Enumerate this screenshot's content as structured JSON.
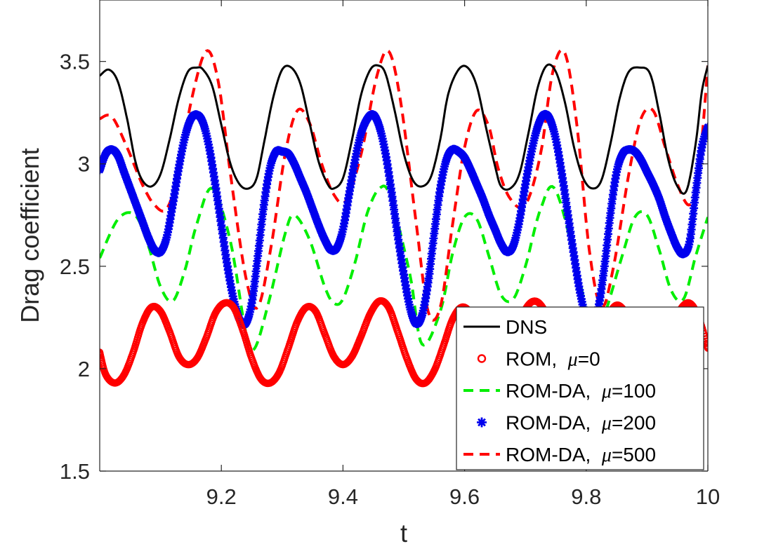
{
  "chart_data": {
    "type": "line",
    "title": "",
    "xlabel": "t",
    "ylabel": "Drag coefficient",
    "xlim": [
      9.0,
      10.0
    ],
    "ylim": [
      1.5,
      3.8
    ],
    "xticks": [
      9.2,
      9.4,
      9.6,
      9.8,
      10
    ],
    "xtick_labels": [
      "9.2",
      "9.4",
      "9.6",
      "9.8",
      "10"
    ],
    "yticks": [
      1.5,
      2,
      2.5,
      3,
      3.5
    ],
    "ytick_labels": [
      "1.5",
      "2",
      "2.5",
      "3",
      "3.5"
    ],
    "grid": false,
    "legend_position": "bottom-right",
    "series": [
      {
        "name": "DNS",
        "legend_label": "DNS",
        "mu": "",
        "style": "solid",
        "color": "#000000",
        "x": [
          9.0,
          9.015,
          9.03,
          9.045,
          9.058,
          9.07,
          9.085,
          9.1,
          9.115,
          9.13,
          9.145,
          9.16,
          9.17,
          9.185,
          9.2,
          9.215,
          9.23,
          9.245,
          9.258,
          9.27,
          9.285,
          9.3,
          9.315,
          9.33,
          9.345,
          9.36,
          9.375,
          9.385,
          9.4,
          9.415,
          9.43,
          9.445,
          9.458,
          9.47,
          9.485,
          9.5,
          9.515,
          9.53,
          9.545,
          9.56,
          9.573,
          9.59,
          9.605,
          9.62,
          9.635,
          9.65,
          9.66,
          9.675,
          9.69,
          9.705,
          9.72,
          9.735,
          9.75,
          9.765,
          9.78,
          9.795,
          9.81,
          9.825,
          9.84,
          9.855,
          9.87,
          9.888,
          9.905,
          9.92,
          9.935,
          9.95,
          9.965,
          9.98,
          9.99,
          10.0
        ],
        "y": [
          3.43,
          3.46,
          3.4,
          3.22,
          3.02,
          2.92,
          2.89,
          2.95,
          3.12,
          3.32,
          3.45,
          3.47,
          3.46,
          3.38,
          3.19,
          3.0,
          2.9,
          2.88,
          2.93,
          3.1,
          3.32,
          3.46,
          3.47,
          3.39,
          3.2,
          3.01,
          2.9,
          2.88,
          2.93,
          3.12,
          3.34,
          3.46,
          3.48,
          3.44,
          3.26,
          3.05,
          2.92,
          2.89,
          2.94,
          3.12,
          3.34,
          3.46,
          3.47,
          3.38,
          3.18,
          2.99,
          2.89,
          2.88,
          2.95,
          3.15,
          3.37,
          3.48,
          3.45,
          3.3,
          3.08,
          2.93,
          2.88,
          2.92,
          3.1,
          3.32,
          3.45,
          3.47,
          3.44,
          3.25,
          3.02,
          2.89,
          2.87,
          3.1,
          3.35,
          3.48
        ]
      },
      {
        "name": "ROM, μ=0",
        "legend_label": "ROM, ",
        "mu": "μ=0",
        "style": "circle-markers",
        "color": "#ff0000",
        "x": [
          9.0,
          9.01,
          9.025,
          9.04,
          9.055,
          9.07,
          9.085,
          9.1,
          9.115,
          9.13,
          9.145,
          9.16,
          9.175,
          9.19,
          9.205,
          9.22,
          9.235,
          9.25,
          9.265,
          9.28,
          9.295,
          9.31,
          9.325,
          9.34,
          9.355,
          9.37,
          9.385,
          9.4,
          9.415,
          9.43,
          9.445,
          9.46,
          9.475,
          9.49,
          9.505,
          9.52,
          9.535,
          9.55,
          9.565,
          9.58,
          9.595,
          9.61,
          9.625,
          9.64,
          9.655,
          9.67,
          9.685,
          9.7,
          9.715,
          9.73,
          9.745,
          9.76,
          9.775,
          9.79,
          9.805,
          9.82,
          9.835,
          9.85,
          9.865,
          9.88,
          9.895,
          9.91,
          9.925,
          9.94,
          9.955,
          9.97,
          9.985,
          10.0
        ],
        "y": [
          2.08,
          1.97,
          1.93,
          1.97,
          2.08,
          2.22,
          2.3,
          2.28,
          2.18,
          2.06,
          2.02,
          2.05,
          2.15,
          2.27,
          2.32,
          2.3,
          2.19,
          2.05,
          1.95,
          1.93,
          1.98,
          2.1,
          2.23,
          2.3,
          2.28,
          2.17,
          2.06,
          2.02,
          2.06,
          2.16,
          2.27,
          2.33,
          2.3,
          2.18,
          2.05,
          1.95,
          1.93,
          1.99,
          2.11,
          2.24,
          2.3,
          2.27,
          2.16,
          2.05,
          2.02,
          2.06,
          2.18,
          2.29,
          2.33,
          2.29,
          2.17,
          2.04,
          1.95,
          1.93,
          1.99,
          2.12,
          2.25,
          2.31,
          2.27,
          2.16,
          2.05,
          2.02,
          2.07,
          2.19,
          2.29,
          2.32,
          2.25,
          2.1
        ]
      },
      {
        "name": "ROM-DA, μ=100",
        "legend_label": "ROM-DA, ",
        "mu": "μ=100",
        "style": "dashed",
        "color": "#00ee00",
        "x": [
          9.0,
          9.03,
          9.058,
          9.08,
          9.1,
          9.12,
          9.14,
          9.16,
          9.185,
          9.215,
          9.24,
          9.255,
          9.28,
          9.305,
          9.32,
          9.345,
          9.37,
          9.385,
          9.4,
          9.42,
          9.44,
          9.46,
          9.478,
          9.51,
          9.53,
          9.56,
          9.58,
          9.6,
          9.62,
          9.64,
          9.66,
          9.68,
          9.7,
          9.725,
          9.75,
          9.79,
          9.81,
          9.83,
          9.86,
          9.88,
          9.9,
          9.92,
          9.94,
          9.96,
          9.98,
          10.0
        ],
        "y": [
          2.54,
          2.73,
          2.75,
          2.6,
          2.4,
          2.33,
          2.48,
          2.71,
          2.88,
          2.62,
          2.18,
          2.1,
          2.35,
          2.66,
          2.75,
          2.63,
          2.4,
          2.32,
          2.34,
          2.52,
          2.76,
          2.88,
          2.84,
          2.46,
          2.12,
          2.28,
          2.56,
          2.74,
          2.73,
          2.55,
          2.36,
          2.34,
          2.5,
          2.78,
          2.87,
          2.42,
          2.12,
          2.26,
          2.56,
          2.74,
          2.75,
          2.58,
          2.38,
          2.34,
          2.55,
          2.74
        ]
      },
      {
        "name": "ROM-DA, μ=200",
        "legend_label": "ROM-DA, ",
        "mu": "μ=200",
        "style": "asterisk-markers",
        "color": "#0000ee",
        "x": [
          9.0,
          9.01,
          9.02,
          9.03,
          9.04,
          9.05,
          9.06,
          9.07,
          9.08,
          9.09,
          9.1,
          9.11,
          9.12,
          9.13,
          9.14,
          9.15,
          9.16,
          9.17,
          9.18,
          9.19,
          9.2,
          9.21,
          9.22,
          9.23,
          9.24,
          9.25,
          9.26,
          9.27,
          9.28,
          9.29,
          9.3,
          9.31,
          9.32,
          9.33,
          9.34,
          9.35,
          9.36,
          9.37,
          9.38,
          9.39,
          9.4,
          9.41,
          9.42,
          9.43,
          9.44,
          9.45,
          9.46,
          9.47,
          9.48,
          9.49,
          9.5,
          9.51,
          9.52,
          9.53,
          9.54,
          9.55,
          9.56,
          9.57,
          9.58,
          9.59,
          9.6,
          9.61,
          9.62,
          9.63,
          9.64,
          9.65,
          9.66,
          9.67,
          9.68,
          9.69,
          9.7,
          9.71,
          9.72,
          9.73,
          9.74,
          9.75,
          9.76,
          9.77,
          9.78,
          9.79,
          9.8,
          9.81,
          9.82,
          9.83,
          9.84,
          9.85,
          9.86,
          9.87,
          9.88,
          9.89,
          9.9,
          9.91,
          9.92,
          9.93,
          9.94,
          9.95,
          9.96,
          9.97,
          9.98,
          9.99,
          10.0
        ],
        "y": [
          2.97,
          3.05,
          3.07,
          3.04,
          2.96,
          2.88,
          2.8,
          2.72,
          2.64,
          2.58,
          2.57,
          2.64,
          2.8,
          2.98,
          3.13,
          3.22,
          3.24,
          3.2,
          3.08,
          2.9,
          2.7,
          2.5,
          2.34,
          2.24,
          2.22,
          2.32,
          2.55,
          2.8,
          2.98,
          3.06,
          3.06,
          3.05,
          3.0,
          2.93,
          2.86,
          2.78,
          2.7,
          2.63,
          2.58,
          2.59,
          2.68,
          2.85,
          3.02,
          3.15,
          3.22,
          3.24,
          3.18,
          3.05,
          2.86,
          2.65,
          2.46,
          2.3,
          2.22,
          2.26,
          2.42,
          2.66,
          2.88,
          3.02,
          3.07,
          3.06,
          3.03,
          2.97,
          2.9,
          2.83,
          2.75,
          2.68,
          2.61,
          2.57,
          2.6,
          2.72,
          2.9,
          3.06,
          3.18,
          3.24,
          3.22,
          3.12,
          2.95,
          2.75,
          2.55,
          2.37,
          2.25,
          2.22,
          2.3,
          2.5,
          2.76,
          2.96,
          3.05,
          3.07,
          3.06,
          3.02,
          2.96,
          2.9,
          2.83,
          2.74,
          2.66,
          2.59,
          2.56,
          2.62,
          2.86,
          3.08,
          3.18
        ]
      },
      {
        "name": "ROM-DA, μ=500",
        "legend_label": "ROM-DA, ",
        "mu": "μ=500",
        "style": "dashed",
        "color": "#ff0000",
        "x": [
          9.0,
          9.02,
          9.045,
          9.07,
          9.09,
          9.11,
          9.13,
          9.15,
          9.175,
          9.195,
          9.215,
          9.24,
          9.26,
          9.282,
          9.305,
          9.325,
          9.345,
          9.365,
          9.385,
          9.405,
          9.43,
          9.455,
          9.475,
          9.495,
          9.52,
          9.54,
          9.56,
          9.58,
          9.6,
          9.62,
          9.64,
          9.655,
          9.675,
          9.7,
          9.725,
          9.745,
          9.765,
          9.785,
          9.805,
          9.825,
          9.845,
          9.87,
          9.89,
          9.91,
          9.93,
          9.95,
          9.97,
          9.985,
          10.0
        ],
        "y": [
          3.22,
          3.23,
          3.08,
          2.9,
          2.8,
          2.78,
          2.96,
          3.3,
          3.55,
          3.4,
          2.95,
          2.45,
          2.3,
          2.6,
          3.05,
          3.26,
          3.2,
          3.0,
          2.85,
          2.82,
          3.05,
          3.42,
          3.55,
          3.3,
          2.72,
          2.28,
          2.3,
          2.7,
          3.08,
          3.26,
          3.18,
          2.98,
          2.83,
          2.8,
          3.05,
          3.45,
          3.54,
          3.18,
          2.58,
          2.3,
          2.5,
          2.95,
          3.22,
          3.26,
          3.08,
          2.9,
          2.8,
          2.96,
          3.48
        ]
      }
    ]
  }
}
